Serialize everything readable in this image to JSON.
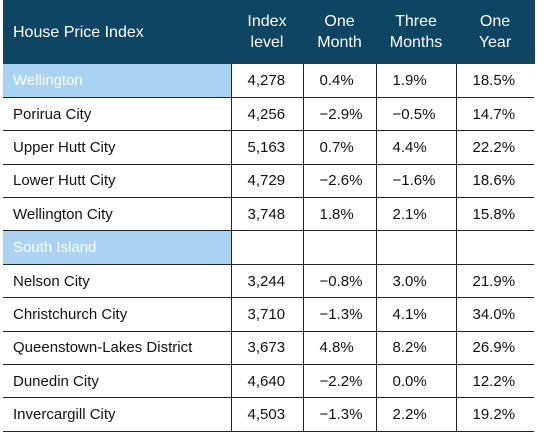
{
  "table": {
    "headers": [
      {
        "lines": [
          "House Price Index"
        ]
      },
      {
        "lines": [
          "Index",
          "level"
        ]
      },
      {
        "lines": [
          "One",
          "Month"
        ]
      },
      {
        "lines": [
          "Three",
          "Months"
        ]
      },
      {
        "lines": [
          "One",
          "Year"
        ]
      }
    ],
    "rows": [
      {
        "type": "region",
        "name": "Wellington"
      },
      {
        "type": "data",
        "name": "Porirua City",
        "index": "4,256",
        "one_month": "−2.9%",
        "three_months": "−0.5%",
        "one_year": "14.7%"
      },
      {
        "type": "data",
        "name": "Upper Hutt City",
        "index": "5,163",
        "one_month": "0.7%",
        "three_months": "4.4%",
        "one_year": "22.2%"
      },
      {
        "type": "data",
        "name": "Lower Hutt City",
        "index": "4,729",
        "one_month": "−2.6%",
        "three_months": "−1.6%",
        "one_year": "18.6%"
      },
      {
        "type": "data",
        "name": "Wellington City",
        "index": "3,748",
        "one_month": "1.8%",
        "three_months": "2.1%",
        "one_year": "15.8%"
      },
      {
        "type": "region",
        "name": "South Island"
      },
      {
        "type": "data",
        "name": "Nelson City",
        "index": "3,244",
        "one_month": "−0.8%",
        "three_months": "3.0%",
        "one_year": "21.9%"
      },
      {
        "type": "data",
        "name": "Christchurch City",
        "index": "3,710",
        "one_month": "−1.3%",
        "three_months": "4.1%",
        "one_year": "34.0%"
      },
      {
        "type": "data",
        "name": "Queenstown-Lakes District",
        "index": "3,673",
        "one_month": "4.8%",
        "three_months": "8.2%",
        "one_year": "26.9%"
      },
      {
        "type": "data",
        "name": "Dunedin City",
        "index": "4,640",
        "one_month": "−2.2%",
        "three_months": "0.0%",
        "one_year": "12.2%"
      },
      {
        "type": "data",
        "name": "Invercargill City",
        "index": "4,503",
        "one_month": "−1.3%",
        "three_months": "2.2%",
        "one_year": "19.2%"
      }
    ],
    "wellington_region_values": {
      "index": "4,278",
      "one_month": "0.4%",
      "three_months": "1.9%",
      "one_year": "18.5%"
    },
    "colors": {
      "header_bg": "#0d4563",
      "region_bg": "#a9d3f0"
    }
  }
}
